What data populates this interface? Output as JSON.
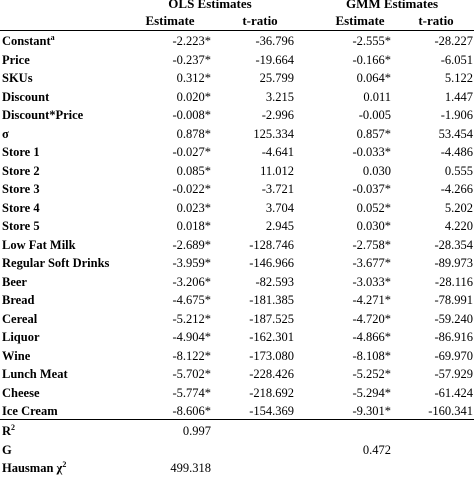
{
  "header": {
    "ols_title": "OLS Estimates",
    "gmm_title": "GMM Estimates",
    "ols_estimate": "Estimate",
    "ols_tratio": "t-ratio",
    "gmm_estimate": "Estimate",
    "gmm_tratio": "t-ratio"
  },
  "rows": [
    {
      "label": "Constant",
      "sup": "a",
      "ols_est": "-2.223*",
      "ols_t": "-36.796",
      "gmm_est": "-2.555*",
      "gmm_t": "-28.227"
    },
    {
      "label": "Price",
      "ols_est": "-0.237*",
      "ols_t": "-19.664",
      "gmm_est": "-0.166*",
      "gmm_t": "-6.051"
    },
    {
      "label": "SKUs",
      "ols_est": "0.312*",
      "ols_t": "25.799",
      "gmm_est": "0.064*",
      "gmm_t": "5.122"
    },
    {
      "label": "Discount",
      "ols_est": "0.020*",
      "ols_t": "3.215",
      "gmm_est": "0.011",
      "gmm_t": "1.447"
    },
    {
      "label": "Discount*Price",
      "ols_est": "-0.008*",
      "ols_t": "-2.996",
      "gmm_est": "-0.005",
      "gmm_t": "-1.906"
    },
    {
      "label": "σ",
      "ols_est": "0.878*",
      "ols_t": "125.334",
      "gmm_est": "0.857*",
      "gmm_t": "53.454"
    },
    {
      "label": "Store 1",
      "ols_est": "-0.027*",
      "ols_t": "-4.641",
      "gmm_est": "-0.033*",
      "gmm_t": "-4.486"
    },
    {
      "label": "Store 2",
      "ols_est": "0.085*",
      "ols_t": "11.012",
      "gmm_est": "0.030",
      "gmm_t": "0.555"
    },
    {
      "label": "Store 3",
      "ols_est": "-0.022*",
      "ols_t": "-3.721",
      "gmm_est": "-0.037*",
      "gmm_t": "-4.266"
    },
    {
      "label": "Store 4",
      "ols_est": "0.023*",
      "ols_t": "3.704",
      "gmm_est": "0.052*",
      "gmm_t": "5.202"
    },
    {
      "label": "Store 5",
      "ols_est": "0.018*",
      "ols_t": "2.945",
      "gmm_est": "0.030*",
      "gmm_t": "4.220"
    },
    {
      "label": "Low Fat Milk",
      "ols_est": "-2.689*",
      "ols_t": "-128.746",
      "gmm_est": "-2.758*",
      "gmm_t": "-28.354"
    },
    {
      "label": "Regular Soft Drinks",
      "ols_est": "-3.959*",
      "ols_t": "-146.966",
      "gmm_est": "-3.677*",
      "gmm_t": "-89.973"
    },
    {
      "label": "Beer",
      "ols_est": "-3.206*",
      "ols_t": "-82.593",
      "gmm_est": "-3.033*",
      "gmm_t": "-28.116"
    },
    {
      "label": "Bread",
      "ols_est": "-4.675*",
      "ols_t": "-181.385",
      "gmm_est": "-4.271*",
      "gmm_t": "-78.991"
    },
    {
      "label": "Cereal",
      "ols_est": "-5.212*",
      "ols_t": "-187.525",
      "gmm_est": "-4.720*",
      "gmm_t": "-59.240"
    },
    {
      "label": "Liquor",
      "ols_est": "-4.904*",
      "ols_t": "-162.301",
      "gmm_est": "-4.866*",
      "gmm_t": "-86.916"
    },
    {
      "label": "Wine",
      "ols_est": "-8.122*",
      "ols_t": "-173.080",
      "gmm_est": "-8.108*",
      "gmm_t": "-69.970"
    },
    {
      "label": "Lunch Meat",
      "ols_est": "-5.702*",
      "ols_t": "-228.426",
      "gmm_est": "-5.252*",
      "gmm_t": "-57.929"
    },
    {
      "label": "Cheese",
      "ols_est": "-5.774*",
      "ols_t": "-218.692",
      "gmm_est": "-5.294*",
      "gmm_t": "-61.424"
    },
    {
      "label": "Ice Cream",
      "ols_est": "-8.606*",
      "ols_t": "-154.369",
      "gmm_est": "-9.301*",
      "gmm_t": "-160.341"
    }
  ],
  "stats": [
    {
      "label": "R",
      "sup": "2",
      "ols_est": "0.997",
      "ols_t": "",
      "gmm_est": "",
      "gmm_t": ""
    },
    {
      "label": "G",
      "ols_est": "",
      "ols_t": "",
      "gmm_est": "0.472",
      "gmm_t": ""
    },
    {
      "label": "Hausman χ",
      "sup": "2",
      "ols_est": "499.318",
      "ols_t": "",
      "gmm_est": "",
      "gmm_t": ""
    }
  ]
}
